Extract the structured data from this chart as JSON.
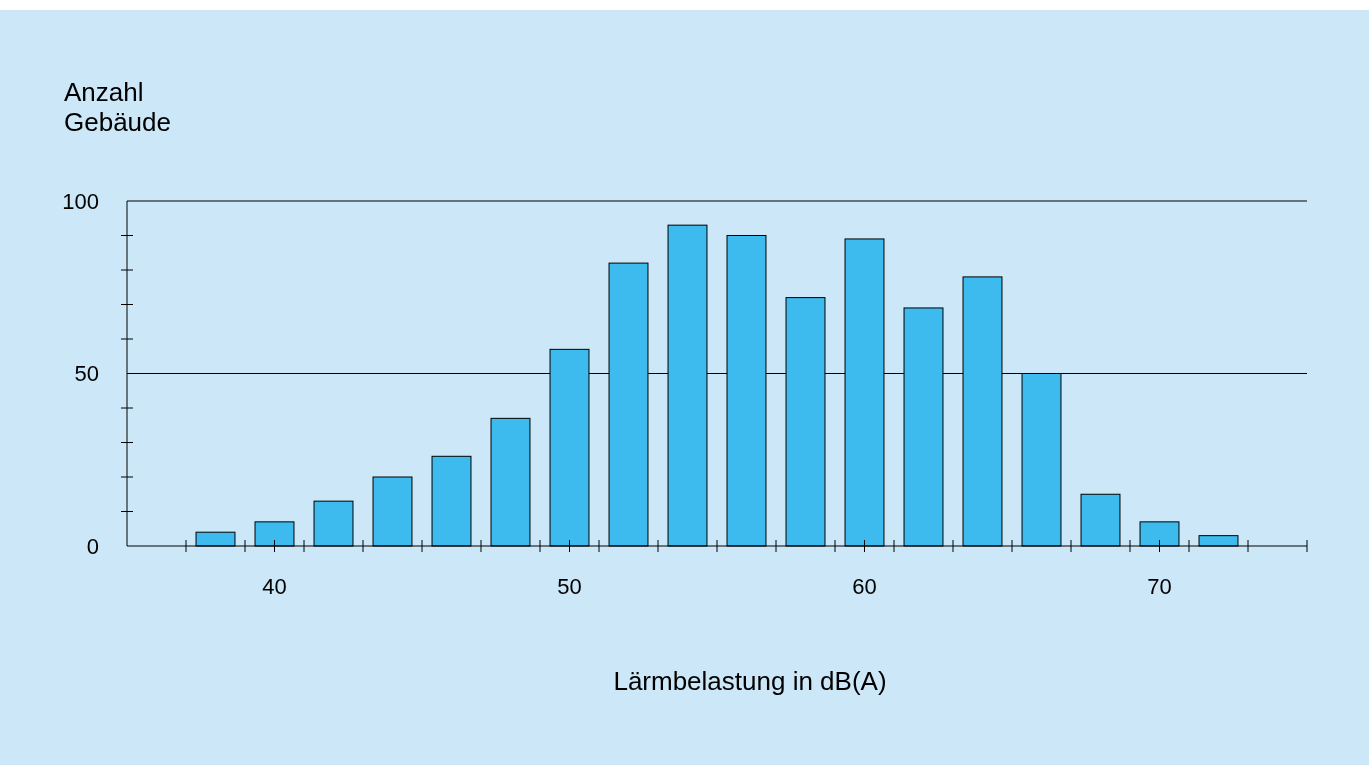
{
  "chart_data": {
    "type": "histogram",
    "xlabel": "Lärmbelastung in dB(A)",
    "ylabel": "Anzahl\nGebäude",
    "bins": [
      37,
      39,
      41,
      43,
      45,
      47,
      49,
      51,
      53,
      55,
      57,
      59,
      61,
      63,
      65,
      67,
      69,
      71,
      73
    ],
    "values": [
      4,
      7,
      13,
      20,
      26,
      37,
      57,
      82,
      93,
      90,
      72,
      89,
      69,
      78,
      50,
      15,
      7,
      3
    ],
    "color": "#3dbbee",
    "xlim": [
      35,
      75
    ],
    "xticks": [
      {
        "value": 37,
        "label": null
      },
      {
        "value": 39,
        "label": null
      },
      40,
      {
        "value": 41,
        "label": null
      },
      {
        "value": 43,
        "label": null
      },
      {
        "value": 45,
        "label": null
      },
      {
        "value": 47,
        "label": null
      },
      {
        "value": 49,
        "label": null
      },
      50,
      {
        "value": 51,
        "label": null
      },
      {
        "value": 53,
        "label": null
      },
      {
        "value": 55,
        "label": null
      },
      {
        "value": 57,
        "label": null
      },
      {
        "value": 59,
        "label": null
      },
      60,
      {
        "value": 61,
        "label": null
      },
      {
        "value": 63,
        "label": null
      },
      {
        "value": 65,
        "label": null
      },
      {
        "value": 67,
        "label": null
      },
      {
        "value": 69,
        "label": null
      },
      70,
      {
        "value": 71,
        "label": null
      },
      {
        "value": 73,
        "label": null
      },
      {
        "value": 75,
        "label": null
      }
    ],
    "ylim": [
      0,
      100
    ],
    "yticks": [
      0,
      {
        "value": 10,
        "label": null
      },
      {
        "value": 20,
        "label": null
      },
      {
        "value": 30,
        "label": null
      },
      {
        "value": 40,
        "label": null
      },
      50,
      {
        "value": 60,
        "label": null
      },
      {
        "value": 70,
        "label": null
      },
      {
        "value": 80,
        "label": null
      },
      {
        "value": 90,
        "label": null
      },
      100
    ],
    "grid": "y"
  }
}
